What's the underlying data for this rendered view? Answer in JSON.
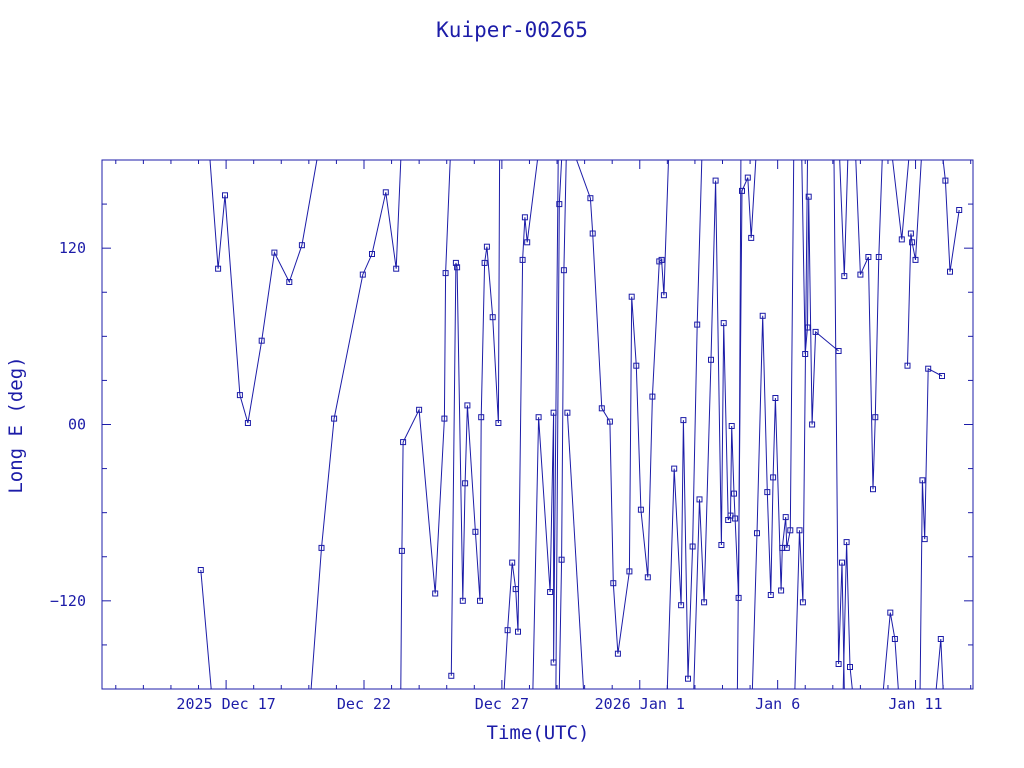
{
  "chart_data": {
    "type": "scatter",
    "title": "Kuiper-00265",
    "xlabel": "Time(UTC)",
    "ylabel": "Long E (deg)",
    "x_axis": {
      "kind": "date",
      "range": [
        "2025-12-12T12:00",
        "2026-01-13T02:00"
      ],
      "tick_labels": [
        {
          "x": "2025-12-17",
          "label": "2025 Dec 17"
        },
        {
          "x": "2025-12-22",
          "label": "Dec 22"
        },
        {
          "x": "2025-12-27",
          "label": "Dec 27"
        },
        {
          "x": "2026-01-01",
          "label": "2026 Jan  1"
        },
        {
          "x": "2026-01-06",
          "label": "Jan  6"
        },
        {
          "x": "2026-01-11",
          "label": "Jan 11"
        }
      ]
    },
    "y_axis": {
      "range": [
        -180,
        180
      ],
      "tick_labels": [
        {
          "y": 120,
          "label": "120"
        },
        {
          "y": 0,
          "label": "00"
        },
        {
          "y": -120,
          "label": "−120"
        }
      ]
    },
    "grid": false,
    "legend": "none",
    "color": "#1c1ca8",
    "marker": "square",
    "note": "sub-satellite longitude track; segments break where longitude wraps past ±180",
    "segments": [
      [
        [
          "2025-12-16T02:00",
          -99
        ],
        [
          "2025-12-16T11:00",
          -180
        ]
      ],
      [
        [
          "2025-12-16T10:00",
          180
        ],
        [
          "2025-12-16T17:00",
          106
        ],
        [
          "2025-12-16T23:00",
          156
        ],
        [
          "2025-12-17T12:00",
          20
        ],
        [
          "2025-12-17T19:00",
          1
        ],
        [
          "2025-12-18T07:00",
          57
        ],
        [
          "2025-12-18T18:00",
          117
        ],
        [
          "2025-12-19T07:00",
          97
        ],
        [
          "2025-12-19T18:00",
          122
        ],
        [
          "2025-12-20T07:00",
          180
        ]
      ],
      [
        [
          "2025-12-20T02:00",
          -180
        ],
        [
          "2025-12-20T11:00",
          -84
        ],
        [
          "2025-12-20T22:00",
          4
        ],
        [
          "2025-12-21T23:00",
          102
        ],
        [
          "2025-12-22T07:00",
          116
        ],
        [
          "2025-12-22T19:00",
          158
        ],
        [
          "2025-12-23T04:00",
          106
        ],
        [
          "2025-12-23T08:00",
          180
        ]
      ],
      [
        [
          "2025-12-23T08:00",
          -180
        ],
        [
          "2025-12-23T09:00",
          -86
        ],
        [
          "2025-12-23T10:00",
          -12
        ],
        [
          "2025-12-24T00:00",
          10
        ],
        [
          "2025-12-24T14:00",
          -115
        ],
        [
          "2025-12-24T22:00",
          4
        ],
        [
          "2025-12-24T23:00",
          103
        ],
        [
          "2025-12-25T03:00",
          180
        ]
      ],
      [
        [
          "2025-12-25T04:00",
          -171
        ],
        [
          "2025-12-25T08:00",
          110
        ],
        [
          "2025-12-25T09:00",
          107
        ],
        [
          "2025-12-25T14:00",
          -120
        ],
        [
          "2025-12-25T16:00",
          -40
        ],
        [
          "2025-12-25T18:00",
          13
        ],
        [
          "2025-12-26T01:00",
          -73
        ],
        [
          "2025-12-26T05:00",
          -120
        ],
        [
          "2025-12-26T06:00",
          5
        ],
        [
          "2025-12-26T09:00",
          110
        ],
        [
          "2025-12-26T11:00",
          121
        ],
        [
          "2025-12-26T16:00",
          73
        ],
        [
          "2025-12-26T21:00",
          1
        ],
        [
          "2025-12-26T22:00",
          180
        ]
      ],
      [
        [
          "2025-12-27T02:00",
          -180
        ],
        [
          "2025-12-27T05:00",
          -140
        ],
        [
          "2025-12-27T09:00",
          -94
        ],
        [
          "2025-12-27T12:00",
          -112
        ],
        [
          "2025-12-27T14:00",
          -141
        ],
        [
          "2025-12-27T18:00",
          112
        ],
        [
          "2025-12-27T20:00",
          141
        ],
        [
          "2025-12-27T22:00",
          124
        ],
        [
          "2025-12-28T07:00",
          180
        ]
      ],
      [
        [
          "2025-12-28T03:00",
          -180
        ],
        [
          "2025-12-28T08:00",
          5
        ],
        [
          "2025-12-28T18:00",
          -114
        ],
        [
          "2025-12-28T21:00",
          8
        ],
        [
          "2025-12-28T21:00",
          -162
        ],
        [
          "2025-12-29T01:00",
          180
        ]
      ],
      [
        [
          "2025-12-29T02:00",
          -180
        ],
        [
          "2025-12-29T04:00",
          -92
        ],
        [
          "2025-12-29T06:00",
          105
        ],
        [
          "2025-12-29T08:00",
          180
        ]
      ],
      [
        [
          "2025-12-28T23:00",
          -180
        ],
        [
          "2025-12-29T02:00",
          150
        ],
        [
          "2025-12-29T04:00",
          180
        ]
      ],
      [
        [
          "2025-12-29T09:00",
          8
        ],
        [
          "2025-12-29T23:00",
          -180
        ]
      ],
      [
        [
          "2025-12-29T17:00",
          180
        ],
        [
          "2025-12-30T05:00",
          154
        ],
        [
          "2025-12-30T07:00",
          130
        ],
        [
          "2025-12-30T15:00",
          11
        ],
        [
          "2025-12-30T22:00",
          2
        ],
        [
          "2025-12-31T01:00",
          -108
        ],
        [
          "2025-12-31T05:00",
          -156
        ],
        [
          "2025-12-31T15:00",
          -100
        ],
        [
          "2025-12-31T17:00",
          87
        ],
        [
          "2025-12-31T21:00",
          40
        ],
        [
          "2026-01-01T01:00",
          -58
        ],
        [
          "2026-01-01T07:00",
          -104
        ],
        [
          "2026-01-01T11:00",
          19
        ],
        [
          "2026-01-01T17:00",
          111
        ],
        [
          "2026-01-01T19:00",
          112
        ],
        [
          "2026-01-01T21:00",
          88
        ],
        [
          "2026-01-02T01:00",
          180
        ]
      ],
      [
        [
          "2026-01-02T00:00",
          -180
        ],
        [
          "2026-01-02T06:00",
          -30
        ],
        [
          "2026-01-02T12:00",
          -123
        ],
        [
          "2026-01-02T14:00",
          3
        ],
        [
          "2026-01-02T18:00",
          -173
        ],
        [
          "2026-01-02T22:00",
          -83
        ],
        [
          "2026-01-03T02:00",
          68
        ],
        [
          "2026-01-03T06:00",
          180
        ]
      ],
      [
        [
          "2026-01-02T23:00",
          -180
        ],
        [
          "2026-01-03T04:00",
          -51
        ],
        [
          "2026-01-03T08:00",
          -121
        ],
        [
          "2026-01-03T14:00",
          44
        ],
        [
          "2026-01-03T18:00",
          166
        ],
        [
          "2026-01-03T23:00",
          -82
        ],
        [
          "2026-01-04T01:00",
          69
        ],
        [
          "2026-01-04T05:00",
          -65
        ],
        [
          "2026-01-04T07:00",
          -62
        ],
        [
          "2026-01-04T08:00",
          -1
        ],
        [
          "2026-01-04T10:00",
          -47
        ],
        [
          "2026-01-04T11:00",
          -64
        ],
        [
          "2026-01-04T14:00",
          -118
        ],
        [
          "2026-01-04T16:00",
          180
        ]
      ],
      [
        [
          "2026-01-04T13:00",
          -180
        ],
        [
          "2026-01-04T17:00",
          159
        ],
        [
          "2026-01-04T22:00",
          168
        ],
        [
          "2026-01-05T01:00",
          127
        ],
        [
          "2026-01-05T05:00",
          180
        ]
      ],
      [
        [
          "2026-01-05T02:00",
          -180
        ],
        [
          "2026-01-05T06:00",
          -74
        ],
        [
          "2026-01-05T11:00",
          74
        ],
        [
          "2026-01-05T15:00",
          -46
        ],
        [
          "2026-01-05T18:00",
          -116
        ],
        [
          "2026-01-05T20:00",
          -36
        ],
        [
          "2026-01-05T22:00",
          18
        ],
        [
          "2026-01-06T03:00",
          -113
        ],
        [
          "2026-01-06T04:00",
          -84
        ],
        [
          "2026-01-06T07:00",
          -63
        ],
        [
          "2026-01-06T08:00",
          -84
        ],
        [
          "2026-01-06T11:00",
          -72
        ],
        [
          "2026-01-06T14:00",
          180
        ]
      ],
      [
        [
          "2026-01-06T15:00",
          -180
        ],
        [
          "2026-01-06T19:00",
          -72
        ],
        [
          "2026-01-06T22:00",
          -121
        ],
        [
          "2026-01-07T02:00",
          180
        ]
      ],
      [
        [
          "2026-01-06T21:00",
          180
        ],
        [
          "2026-01-07T00:00",
          48
        ],
        [
          "2026-01-07T02:00",
          66
        ],
        [
          "2026-01-07T03:00",
          155
        ],
        [
          "2026-01-07T06:00",
          0
        ],
        [
          "2026-01-07T09:00",
          63
        ],
        [
          "2026-01-08T05:00",
          50
        ]
      ],
      [
        [
          "2026-01-08T01:00",
          180
        ],
        [
          "2026-01-08T05:00",
          -163
        ],
        [
          "2026-01-08T08:00",
          -94
        ],
        [
          "2026-01-08T10:00",
          -180
        ]
      ],
      [
        [
          "2026-01-08T06:00",
          180
        ],
        [
          "2026-01-08T10:00",
          101
        ],
        [
          "2026-01-08T13:00",
          180
        ]
      ],
      [
        [
          "2026-01-08T09:00",
          -180
        ],
        [
          "2026-01-08T12:00",
          -80
        ],
        [
          "2026-01-08T15:00",
          -165
        ],
        [
          "2026-01-08T17:00",
          -180
        ]
      ],
      [
        [
          "2026-01-08T20:00",
          180
        ],
        [
          "2026-01-09T00:00",
          102
        ],
        [
          "2026-01-09T07:00",
          114
        ],
        [
          "2026-01-09T11:00",
          -44
        ],
        [
          "2026-01-09T13:00",
          5
        ],
        [
          "2026-01-09T16:00",
          114
        ],
        [
          "2026-01-09T19:00",
          180
        ]
      ],
      [
        [
          "2026-01-09T20:00",
          -180
        ],
        [
          "2026-01-10T02:00",
          -128
        ],
        [
          "2026-01-10T06:00",
          -146
        ],
        [
          "2026-01-10T09:00",
          -180
        ]
      ],
      [
        [
          "2026-01-10T04:00",
          180
        ],
        [
          "2026-01-10T12:00",
          126
        ],
        [
          "2026-01-10T18:00",
          180
        ]
      ],
      [
        [
          "2026-01-10T17:00",
          40
        ],
        [
          "2026-01-10T20:00",
          130
        ],
        [
          "2026-01-10T21:00",
          124
        ],
        [
          "2026-01-11T00:00",
          112
        ],
        [
          "2026-01-11T05:00",
          180
        ]
      ],
      [
        [
          "2026-01-11T04:00",
          -180
        ],
        [
          "2026-01-11T06:00",
          -38
        ],
        [
          "2026-01-11T08:00",
          -78
        ],
        [
          "2026-01-11T11:00",
          38
        ],
        [
          "2026-01-11T23:00",
          33
        ]
      ],
      [
        [
          "2026-01-11T18:00",
          -180
        ],
        [
          "2026-01-11T22:00",
          -146
        ],
        [
          "2026-01-12T00:00",
          -180
        ]
      ],
      [
        [
          "2026-01-12T00:00",
          180
        ],
        [
          "2026-01-12T02:00",
          166
        ],
        [
          "2026-01-12T06:00",
          104
        ],
        [
          "2026-01-12T14:00",
          146
        ]
      ]
    ]
  }
}
